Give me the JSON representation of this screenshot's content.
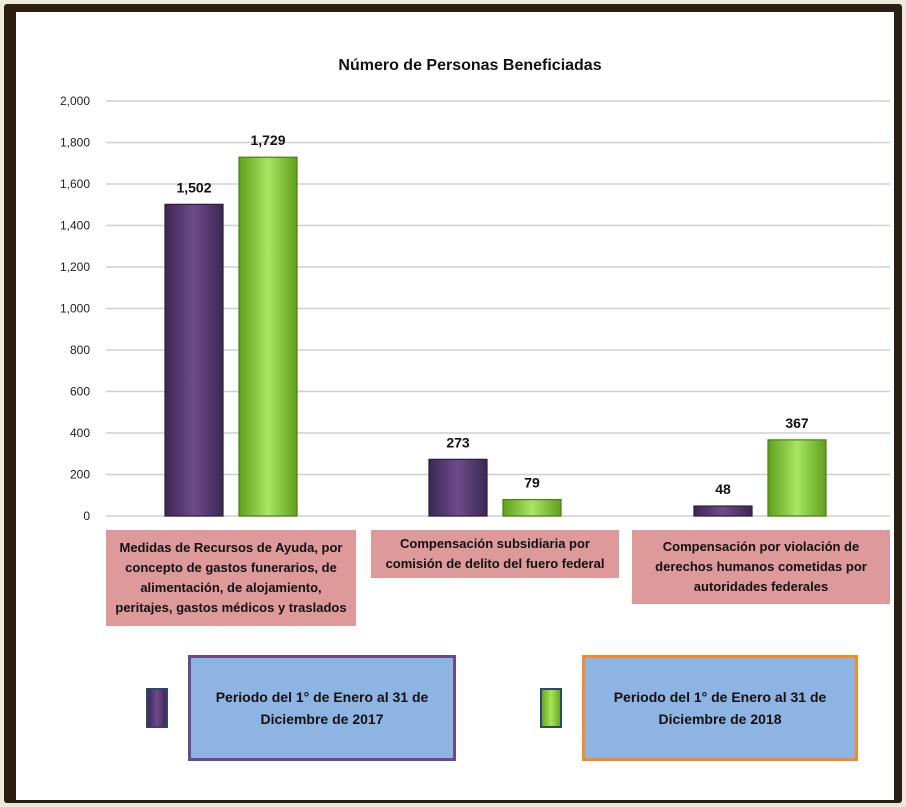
{
  "chart_data": {
    "type": "bar",
    "title": "Número de Personas Beneficiadas",
    "categories": [
      "Medidas de Recursos de Ayuda, por concepto de gastos funerarios, de alimentación, de alojamiento, peritajes, gastos médicos y traslados",
      "Compensación subsidiaria por comisión de delito del fuero federal",
      "Compensación por violación de derechos humanos cometidas por autoridades federales"
    ],
    "series": [
      {
        "name": "Periodo del 1° de Enero al 31 de Diciembre de 2017",
        "values": [
          1502,
          273,
          48
        ],
        "labels": [
          "1,502",
          "273",
          "48"
        ],
        "color": "#5d3c78"
      },
      {
        "name": "Periodo del 1° de Enero al 31 de Diciembre de 2018",
        "values": [
          1729,
          79,
          367
        ],
        "labels": [
          "1,729",
          "79",
          "367"
        ],
        "color": "#8fd33b"
      }
    ],
    "ylim": [
      0,
      2000
    ],
    "yticks": [
      0,
      200,
      400,
      600,
      800,
      1000,
      1200,
      1400,
      1600,
      1800,
      2000
    ],
    "ytick_labels": [
      "0",
      "200",
      "400",
      "600",
      "800",
      "1,000",
      "1,200",
      "1,400",
      "1,600",
      "1,800",
      "2,000"
    ],
    "grid": true,
    "legend_position": "bottom",
    "colors": {
      "category_box": "#de9a9a",
      "legend_box": "#8eb4e3",
      "legend_border_2017": "#6a4a8a",
      "legend_border_2018": "#f28c28"
    }
  }
}
